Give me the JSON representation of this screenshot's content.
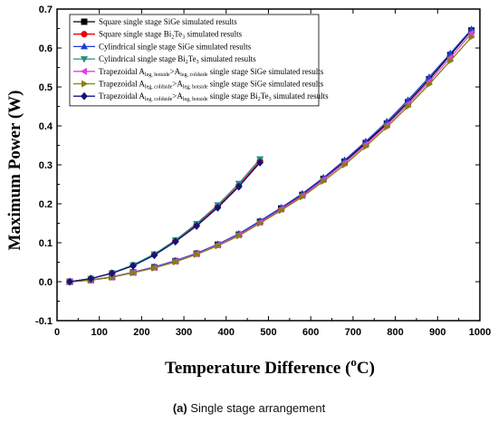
{
  "chart_data": {
    "type": "line",
    "xlabel_main": "Temperature Difference (",
    "xlabel_sup": "o",
    "xlabel_end": "C)",
    "ylabel": "Maximum Power (W)",
    "xlim": [
      0,
      1000
    ],
    "ylim": [
      -0.1,
      0.7
    ],
    "xticks": [
      0,
      100,
      200,
      300,
      400,
      500,
      600,
      700,
      800,
      900,
      1000
    ],
    "yticks": [
      -0.1,
      0.0,
      0.1,
      0.2,
      0.3,
      0.4,
      0.5,
      0.6,
      0.7
    ],
    "grid": false,
    "legend_position": "top-left",
    "series": [
      {
        "name": "Square single stage SiGe simulated results",
        "legend": [
          {
            "t": "Square single stage SiGe simulated results"
          }
        ],
        "color": "#000000",
        "marker": "square",
        "x": [
          30,
          80,
          130,
          180,
          230,
          280,
          330,
          380,
          430,
          480,
          530,
          580,
          630,
          680,
          730,
          780,
          830,
          880,
          930,
          980
        ],
        "y": [
          0.0,
          0.0043,
          0.012,
          0.024,
          0.037,
          0.053,
          0.072,
          0.095,
          0.121,
          0.154,
          0.188,
          0.223,
          0.264,
          0.308,
          0.356,
          0.406,
          0.461,
          0.52,
          0.582,
          0.645
        ]
      },
      {
        "name": "Square single stage Bi2Te3 simulated results",
        "legend": [
          {
            "t": "Square single stage Bi"
          },
          {
            "t": "2",
            "sub": true
          },
          {
            "t": "Te"
          },
          {
            "t": "3",
            "sub": true
          },
          {
            "t": " simulated results"
          }
        ],
        "color": "#e8000b",
        "marker": "circle",
        "x": [
          30,
          80,
          130,
          180,
          230,
          280,
          330,
          380,
          430,
          480
        ],
        "y": [
          0.0,
          0.008,
          0.022,
          0.042,
          0.07,
          0.105,
          0.146,
          0.193,
          0.247,
          0.31
        ]
      },
      {
        "name": "Cylindrical single stage SiGe simulated results",
        "legend": [
          {
            "t": "Cylindrical single stage SiGe simulated results"
          }
        ],
        "color": "#1f3fd6",
        "marker": "triangle-up",
        "x": [
          30,
          80,
          130,
          180,
          230,
          280,
          330,
          380,
          430,
          480,
          530,
          580,
          630,
          680,
          730,
          780,
          830,
          880,
          930,
          980
        ],
        "y": [
          0.0,
          0.0044,
          0.0122,
          0.0245,
          0.038,
          0.054,
          0.073,
          0.096,
          0.123,
          0.156,
          0.19,
          0.226,
          0.267,
          0.312,
          0.36,
          0.411,
          0.466,
          0.525,
          0.586,
          0.648
        ]
      },
      {
        "name": "Cylindrical single stage Bi2Te3 simulated results",
        "legend": [
          {
            "t": "Cylindrical single stage Bi"
          },
          {
            "t": "2",
            "sub": true
          },
          {
            "t": "Te"
          },
          {
            "t": "3",
            "sub": true
          },
          {
            "t": " simulated results"
          }
        ],
        "color": "#2a8f7f",
        "marker": "triangle-down",
        "x": [
          30,
          80,
          130,
          180,
          230,
          280,
          330,
          380,
          430,
          480
        ],
        "y": [
          0.0,
          0.0082,
          0.0225,
          0.043,
          0.071,
          0.107,
          0.149,
          0.197,
          0.252,
          0.315
        ]
      },
      {
        "name": "Trapezoidal Aleg,hotside>Aleg,coldside single stage SiGe simulated results",
        "legend": [
          {
            "t": "Trapezoidal A"
          },
          {
            "t": "leg, hotside",
            "sub": true
          },
          {
            "t": ">A"
          },
          {
            "t": "leg, coldside",
            "sub": true
          },
          {
            "t": " single stage SiGe simulated results"
          }
        ],
        "color": "#e040e0",
        "marker": "triangle-left",
        "x": [
          30,
          80,
          130,
          180,
          230,
          280,
          330,
          380,
          430,
          480,
          530,
          580,
          630,
          680,
          730,
          780,
          830,
          880,
          930,
          980
        ],
        "y": [
          0.0,
          0.0042,
          0.0118,
          0.0235,
          0.036,
          0.052,
          0.071,
          0.094,
          0.12,
          0.152,
          0.186,
          0.221,
          0.262,
          0.305,
          0.352,
          0.402,
          0.456,
          0.514,
          0.575,
          0.638
        ]
      },
      {
        "name": "Trapezoidal Aleg,coldside>Aleg,hotside single stage SiGe simulated results",
        "legend": [
          {
            "t": "Trapezoidal A"
          },
          {
            "t": "leg, coldside",
            "sub": true
          },
          {
            "t": ">A"
          },
          {
            "t": "leg, hotside",
            "sub": true
          },
          {
            "t": " single stage SiGe simulated results"
          }
        ],
        "color": "#8a7d12",
        "marker": "triangle-right",
        "x": [
          30,
          80,
          130,
          180,
          230,
          280,
          330,
          380,
          430,
          480,
          530,
          580,
          630,
          680,
          730,
          780,
          830,
          880,
          930,
          980
        ],
        "y": [
          0.0,
          0.004,
          0.0115,
          0.023,
          0.035,
          0.051,
          0.07,
          0.092,
          0.118,
          0.15,
          0.183,
          0.218,
          0.258,
          0.3,
          0.347,
          0.397,
          0.45,
          0.507,
          0.567,
          0.628
        ]
      },
      {
        "name": "Trapezoidal Aleg,coldside>Aleg,hotside single stage Bi2Te3 simulated results",
        "legend": [
          {
            "t": "Trapezoidal A"
          },
          {
            "t": "leg, coldside",
            "sub": true
          },
          {
            "t": ">A"
          },
          {
            "t": "leg, hotside",
            "sub": true
          },
          {
            "t": " single stage Bi"
          },
          {
            "t": "2",
            "sub": true
          },
          {
            "t": "Te"
          },
          {
            "t": "3",
            "sub": true
          },
          {
            "t": " simulated results"
          }
        ],
        "color": "#14147a",
        "marker": "diamond",
        "x": [
          30,
          80,
          130,
          180,
          230,
          280,
          330,
          380,
          430,
          480
        ],
        "y": [
          0.0,
          0.0078,
          0.0215,
          0.041,
          0.068,
          0.103,
          0.143,
          0.19,
          0.244,
          0.306
        ]
      }
    ]
  },
  "caption": {
    "label": "(a)",
    "text": " Single stage arrangement"
  }
}
